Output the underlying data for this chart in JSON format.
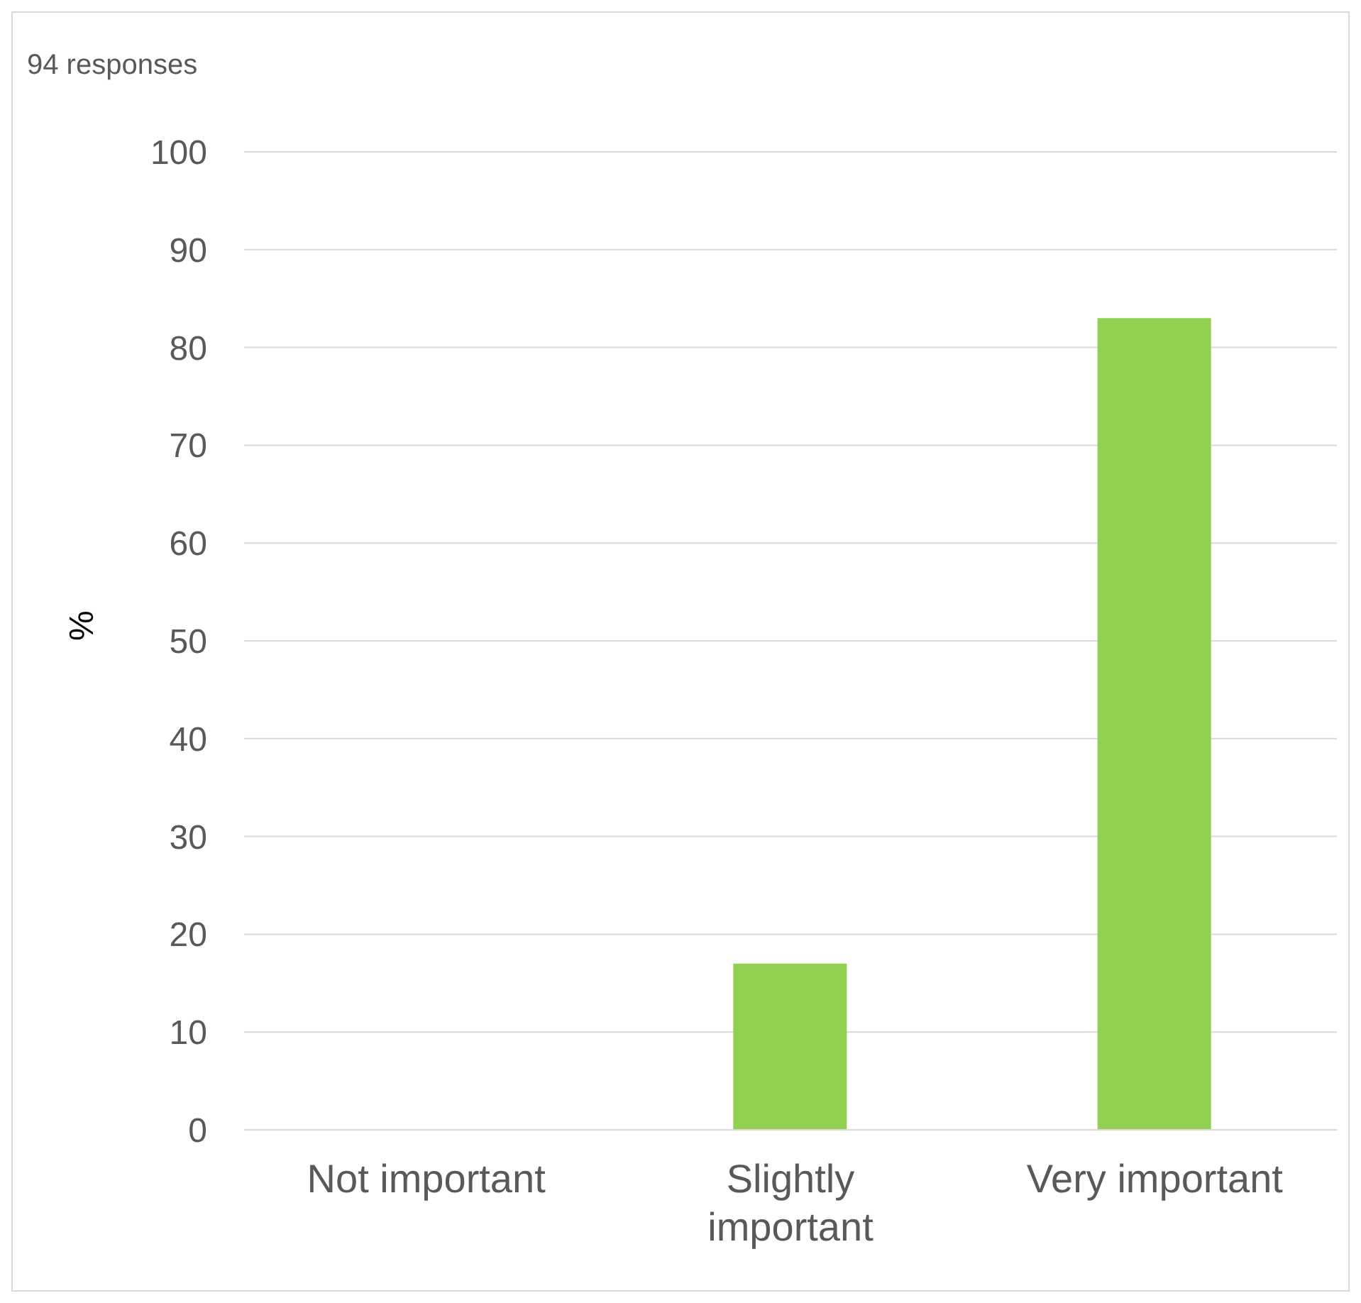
{
  "chart_data": {
    "type": "bar",
    "title": "94 responses",
    "ylabel": "%",
    "categories": [
      "Not important",
      "Slightly important",
      "Very important"
    ],
    "values": [
      0,
      17,
      83
    ],
    "color": "#92d050",
    "ylim": [
      0,
      100
    ],
    "yticks": [
      0,
      10,
      20,
      30,
      40,
      50,
      60,
      70,
      80,
      90,
      100
    ],
    "grid": "y"
  }
}
